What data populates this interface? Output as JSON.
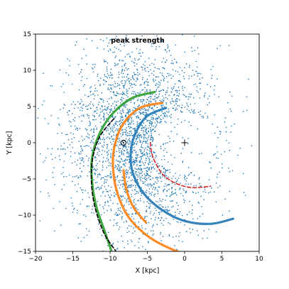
{
  "chart_data": {
    "type": "scatter",
    "title": "peak strength",
    "xlabel": "X [kpc]",
    "ylabel": "Y [kpc]",
    "xlim": [
      -20,
      10
    ],
    "ylim": [
      -15,
      15
    ],
    "xticks": [
      -20,
      -15,
      -10,
      -5,
      0,
      5,
      10
    ],
    "yticks": [
      -15,
      -10,
      -5,
      0,
      5,
      10,
      15
    ],
    "grid": false,
    "sun_marker": {
      "x": -8.2,
      "y": 0.0
    },
    "galactic_center_marker": {
      "x": 0.0,
      "y": 0.0
    },
    "scatter_color": "#1f77b4",
    "scatter_point_count": 2600,
    "arm_color_blue": "#1f77b4",
    "arm_color_orange": "#ff7f0e",
    "arm_color_green": "#2ca02c",
    "arm_color_red": "#d62728",
    "arm_color_black": "#000000",
    "arms": [
      {
        "color": "#d62728",
        "dashed": true,
        "points": [
          [
            -4.6,
            0
          ],
          [
            -4.4,
            -1.5
          ],
          [
            -3.8,
            -3.0
          ],
          [
            -2.8,
            -4.5
          ],
          [
            -1.2,
            -5.6
          ],
          [
            1.0,
            -6.2
          ],
          [
            3.5,
            -6.0
          ]
        ]
      },
      {
        "color": "#1f77b4",
        "dashed": false,
        "points": [
          [
            -2.5,
            4.8
          ],
          [
            -5.0,
            3.7
          ],
          [
            -6.5,
            1.5
          ],
          [
            -7.2,
            -1.0
          ],
          [
            -7.0,
            -4.0
          ],
          [
            -5.5,
            -7.0
          ],
          [
            -3.0,
            -9.3
          ],
          [
            0.0,
            -10.8
          ],
          [
            3.5,
            -11.2
          ],
          [
            6.5,
            -10.5
          ]
        ]
      },
      {
        "color": "#ff7f0e",
        "dashed": false,
        "points": [
          [
            -3.0,
            5.5
          ],
          [
            -6.0,
            4.8
          ],
          [
            -8.3,
            2.5
          ],
          [
            -9.4,
            -0.5
          ],
          [
            -9.6,
            -3.5
          ],
          [
            -9.0,
            -7.0
          ],
          [
            -7.5,
            -10.3
          ],
          [
            -4.8,
            -13.0
          ],
          [
            -1.5,
            -14.8
          ],
          [
            1.0,
            -15.5
          ]
        ]
      },
      {
        "color": "#ff7f0e",
        "dashed": false,
        "points": [
          [
            -8.2,
            -3.8
          ],
          [
            -7.8,
            -6.5
          ],
          [
            -6.8,
            -9.0
          ],
          [
            -5.2,
            -11.0
          ]
        ]
      },
      {
        "color": "#2ca02c",
        "dashed": false,
        "points": [
          [
            -4.0,
            7.0
          ],
          [
            -7.0,
            6.2
          ],
          [
            -9.5,
            4.2
          ],
          [
            -11.3,
            1.5
          ],
          [
            -12.4,
            -2.0
          ],
          [
            -12.4,
            -5.5
          ],
          [
            -11.8,
            -9.0
          ],
          [
            -10.8,
            -12.0
          ],
          [
            -9.8,
            -15.0
          ]
        ]
      },
      {
        "color": "#000000",
        "dashed": true,
        "points": [
          [
            -9.5,
            3.3
          ],
          [
            -11.3,
            1.0
          ],
          [
            -12.3,
            -2.0
          ],
          [
            -12.5,
            -5.5
          ],
          [
            -12.0,
            -9.0
          ],
          [
            -10.8,
            -12.5
          ],
          [
            -9.2,
            -15.0
          ]
        ]
      }
    ]
  }
}
